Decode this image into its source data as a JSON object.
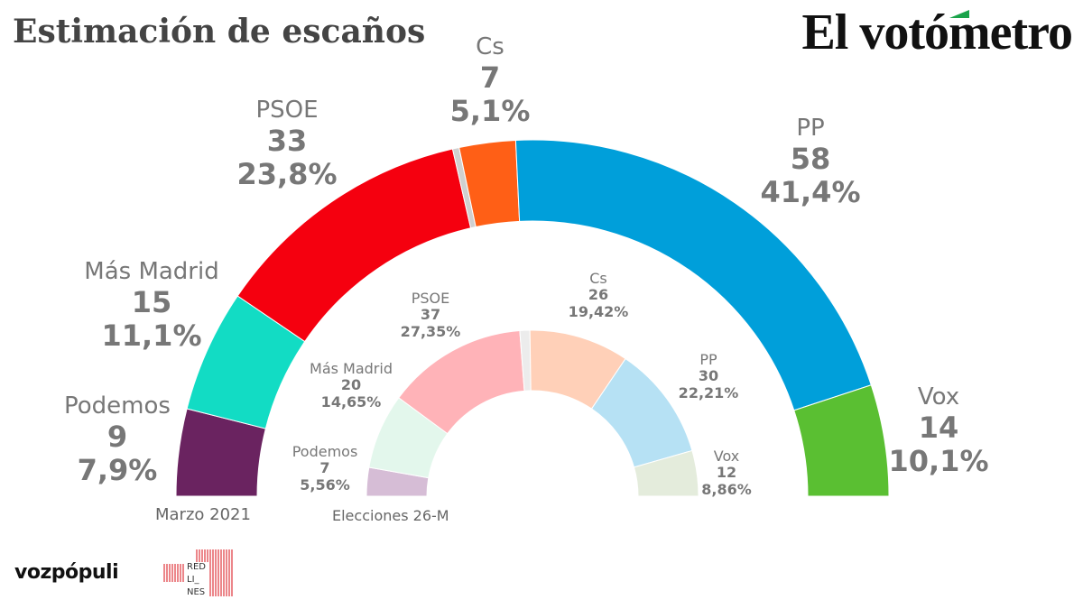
{
  "header": {
    "title": "Estimación de escaños",
    "brand": "El votómetro"
  },
  "footer": {
    "logo_left": "vozpópuli",
    "logo_right": "RED LI_ NES"
  },
  "chart_data": [
    {
      "type": "pie",
      "title": "Marzo 2021",
      "shape": "hemicycle",
      "parties": [
        {
          "name": "Podemos",
          "seats": "9",
          "pct": "7,9%",
          "value": 7.9,
          "color": "#6a2360"
        },
        {
          "name": "Más Madrid",
          "seats": "15",
          "pct": "11,1%",
          "value": 11.1,
          "color": "#12dcc4"
        },
        {
          "name": "PSOE",
          "seats": "33",
          "pct": "23,8%",
          "value": 23.8,
          "color": "#f5000f"
        },
        {
          "name": "",
          "seats": "",
          "pct": "",
          "value": 0.6,
          "color": "#d0d0d0"
        },
        {
          "name": "Cs",
          "seats": "7",
          "pct": "5,1%",
          "value": 5.1,
          "color": "#ff5f16"
        },
        {
          "name": "PP",
          "seats": "58",
          "pct": "41,4%",
          "value": 41.4,
          "color": "#009fda"
        },
        {
          "name": "Vox",
          "seats": "14",
          "pct": "10,1%",
          "value": 10.1,
          "color": "#5abf32"
        }
      ]
    },
    {
      "type": "pie",
      "title": "Elecciones 26-M",
      "shape": "hemicycle",
      "parties": [
        {
          "name": "Podemos",
          "seats": "7",
          "pct": "5,56%",
          "value": 5.56,
          "color": "#d6bdd6"
        },
        {
          "name": "Más Madrid",
          "seats": "20",
          "pct": "14,65%",
          "value": 14.65,
          "color": "#e3f7ec"
        },
        {
          "name": "PSOE",
          "seats": "37",
          "pct": "27,35%",
          "value": 27.35,
          "color": "#ffb3b8"
        },
        {
          "name": "",
          "seats": "",
          "pct": "",
          "value": 1.95,
          "color": "#ececec"
        },
        {
          "name": "Cs",
          "seats": "26",
          "pct": "19,42%",
          "value": 19.42,
          "color": "#ffd0b8"
        },
        {
          "name": "PP",
          "seats": "30",
          "pct": "22,21%",
          "value": 22.21,
          "color": "#b6e1f4"
        },
        {
          "name": "Vox",
          "seats": "12",
          "pct": "8,86%",
          "value": 8.86,
          "color": "#e4ecdc"
        }
      ]
    }
  ]
}
